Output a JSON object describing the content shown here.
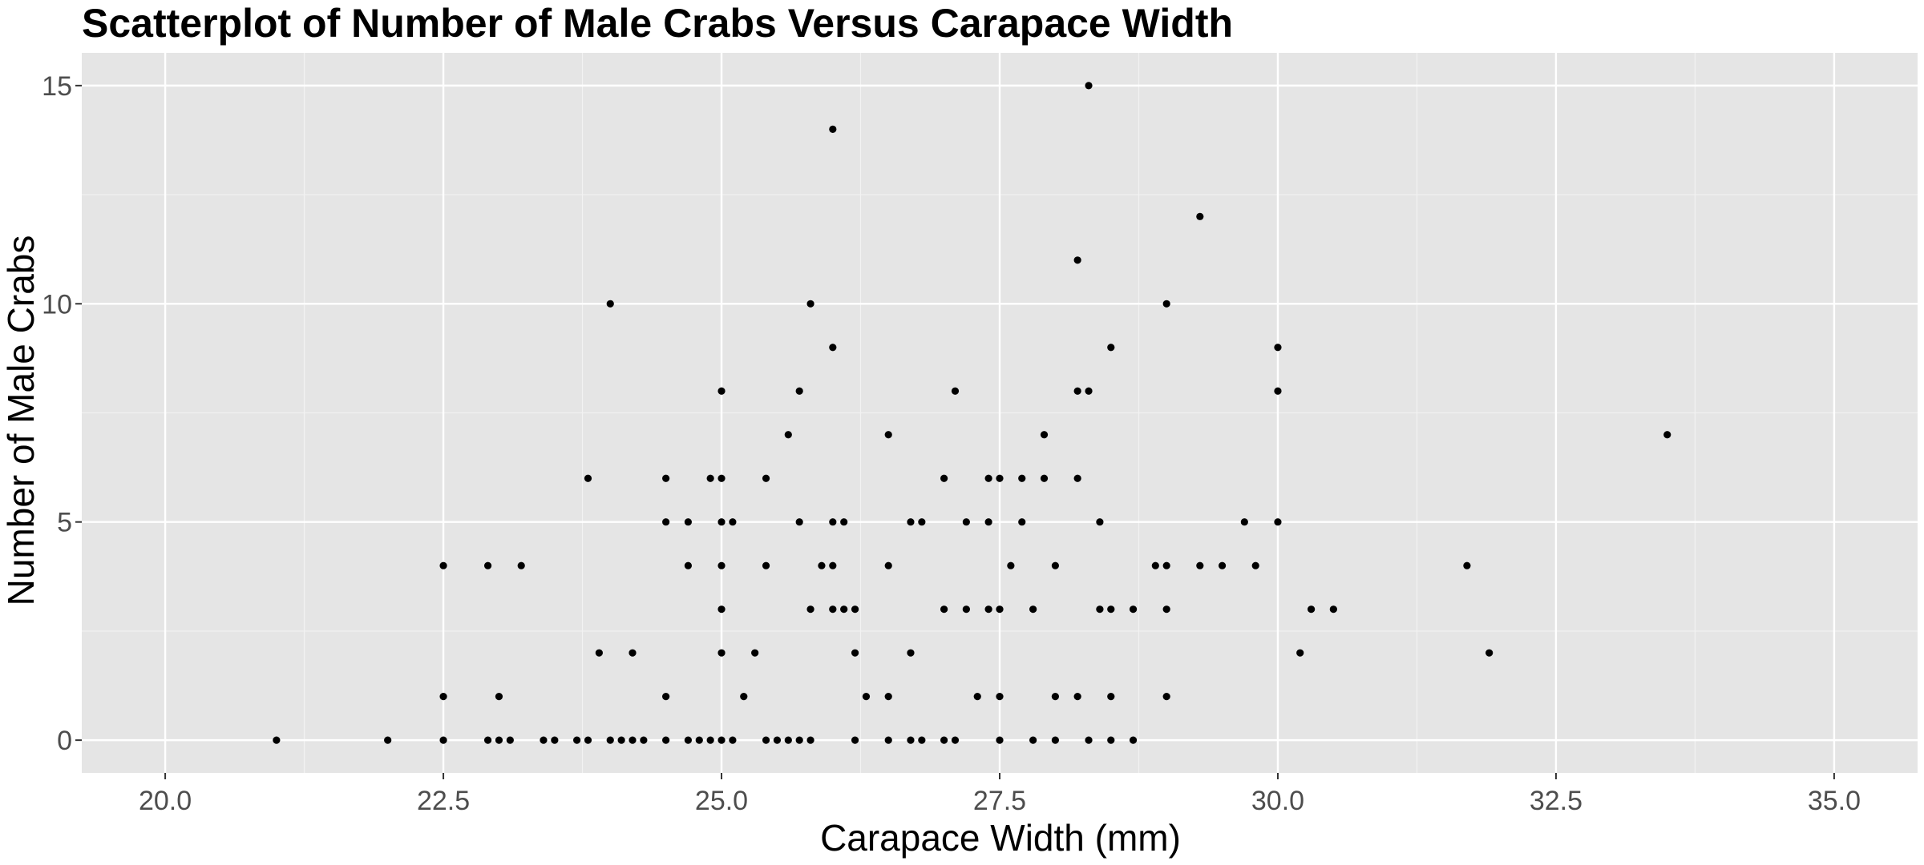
{
  "chart_data": {
    "type": "scatter",
    "title": "Scatterplot of Number of Male Crabs Versus Carapace Width",
    "xlabel": "Carapace Width (mm)",
    "ylabel": "Number of Male Crabs",
    "xlim": [
      19.25,
      35.75
    ],
    "ylim": [
      -0.75,
      15.75
    ],
    "x_ticks": [
      20.0,
      22.5,
      25.0,
      27.5,
      30.0,
      32.5,
      35.0
    ],
    "x_tick_labels": [
      "20.0",
      "22.5",
      "25.0",
      "27.5",
      "30.0",
      "32.5",
      "35.0"
    ],
    "y_ticks": [
      0,
      5,
      10,
      15
    ],
    "y_tick_labels": [
      "0",
      "5",
      "10",
      "15"
    ],
    "grid": true,
    "legend": "none",
    "colors": {
      "panel": "#e5e5e5",
      "grid": "#ffffff",
      "point": "#000000",
      "tick_label": "#4d4d4d"
    },
    "points": [
      [
        21.0,
        0
      ],
      [
        22.0,
        0
      ],
      [
        22.5,
        4
      ],
      [
        22.5,
        1
      ],
      [
        22.5,
        0
      ],
      [
        22.9,
        4
      ],
      [
        22.9,
        0
      ],
      [
        23.0,
        1
      ],
      [
        23.0,
        0
      ],
      [
        23.1,
        0
      ],
      [
        23.2,
        4
      ],
      [
        23.4,
        0
      ],
      [
        23.5,
        0
      ],
      [
        23.7,
        0
      ],
      [
        23.8,
        6
      ],
      [
        23.8,
        0
      ],
      [
        23.9,
        2
      ],
      [
        24.0,
        10
      ],
      [
        24.0,
        0
      ],
      [
        24.1,
        0
      ],
      [
        24.2,
        2
      ],
      [
        24.2,
        0
      ],
      [
        24.3,
        0
      ],
      [
        24.5,
        6
      ],
      [
        24.5,
        5
      ],
      [
        24.5,
        1
      ],
      [
        24.5,
        0
      ],
      [
        24.7,
        5
      ],
      [
        24.7,
        4
      ],
      [
        24.7,
        0
      ],
      [
        24.8,
        0
      ],
      [
        24.9,
        6
      ],
      [
        24.9,
        0
      ],
      [
        25.0,
        8
      ],
      [
        25.0,
        6
      ],
      [
        25.0,
        5
      ],
      [
        25.0,
        4
      ],
      [
        25.0,
        3
      ],
      [
        25.0,
        2
      ],
      [
        25.0,
        0
      ],
      [
        25.1,
        5
      ],
      [
        25.1,
        0
      ],
      [
        25.2,
        1
      ],
      [
        25.3,
        2
      ],
      [
        25.4,
        6
      ],
      [
        25.4,
        4
      ],
      [
        25.4,
        0
      ],
      [
        25.5,
        0
      ],
      [
        25.6,
        7
      ],
      [
        25.6,
        0
      ],
      [
        25.7,
        8
      ],
      [
        25.7,
        5
      ],
      [
        25.7,
        0
      ],
      [
        25.8,
        10
      ],
      [
        25.8,
        3
      ],
      [
        25.8,
        0
      ],
      [
        25.9,
        4
      ],
      [
        26.0,
        14
      ],
      [
        26.0,
        9
      ],
      [
        26.0,
        5
      ],
      [
        26.0,
        4
      ],
      [
        26.0,
        3
      ],
      [
        26.1,
        5
      ],
      [
        26.1,
        3
      ],
      [
        26.2,
        3
      ],
      [
        26.2,
        2
      ],
      [
        26.2,
        0
      ],
      [
        26.3,
        1
      ],
      [
        26.5,
        7
      ],
      [
        26.5,
        4
      ],
      [
        26.5,
        1
      ],
      [
        26.5,
        0
      ],
      [
        26.7,
        5
      ],
      [
        26.7,
        2
      ],
      [
        26.7,
        0
      ],
      [
        26.8,
        5
      ],
      [
        26.8,
        0
      ],
      [
        27.0,
        6
      ],
      [
        27.0,
        3
      ],
      [
        27.0,
        0
      ],
      [
        27.1,
        8
      ],
      [
        27.1,
        0
      ],
      [
        27.2,
        5
      ],
      [
        27.2,
        3
      ],
      [
        27.3,
        1
      ],
      [
        27.4,
        6
      ],
      [
        27.4,
        5
      ],
      [
        27.4,
        3
      ],
      [
        27.5,
        6
      ],
      [
        27.5,
        3
      ],
      [
        27.5,
        1
      ],
      [
        27.5,
        0
      ],
      [
        27.6,
        4
      ],
      [
        27.7,
        6
      ],
      [
        27.7,
        5
      ],
      [
        27.8,
        3
      ],
      [
        27.8,
        0
      ],
      [
        27.9,
        7
      ],
      [
        27.9,
        6
      ],
      [
        28.0,
        4
      ],
      [
        28.0,
        1
      ],
      [
        28.0,
        0
      ],
      [
        28.2,
        11
      ],
      [
        28.2,
        8
      ],
      [
        28.2,
        6
      ],
      [
        28.2,
        1
      ],
      [
        28.3,
        15
      ],
      [
        28.3,
        8
      ],
      [
        28.3,
        0
      ],
      [
        28.4,
        5
      ],
      [
        28.4,
        3
      ],
      [
        28.5,
        9
      ],
      [
        28.5,
        3
      ],
      [
        28.5,
        1
      ],
      [
        28.5,
        0
      ],
      [
        28.7,
        3
      ],
      [
        28.7,
        0
      ],
      [
        28.9,
        4
      ],
      [
        29.0,
        10
      ],
      [
        29.0,
        4
      ],
      [
        29.0,
        3
      ],
      [
        29.0,
        1
      ],
      [
        29.3,
        12
      ],
      [
        29.3,
        4
      ],
      [
        29.5,
        4
      ],
      [
        29.7,
        5
      ],
      [
        29.8,
        4
      ],
      [
        30.0,
        9
      ],
      [
        30.0,
        8
      ],
      [
        30.0,
        5
      ],
      [
        30.2,
        2
      ],
      [
        30.3,
        3
      ],
      [
        30.5,
        3
      ],
      [
        31.7,
        4
      ],
      [
        31.9,
        2
      ],
      [
        33.5,
        7
      ]
    ]
  }
}
